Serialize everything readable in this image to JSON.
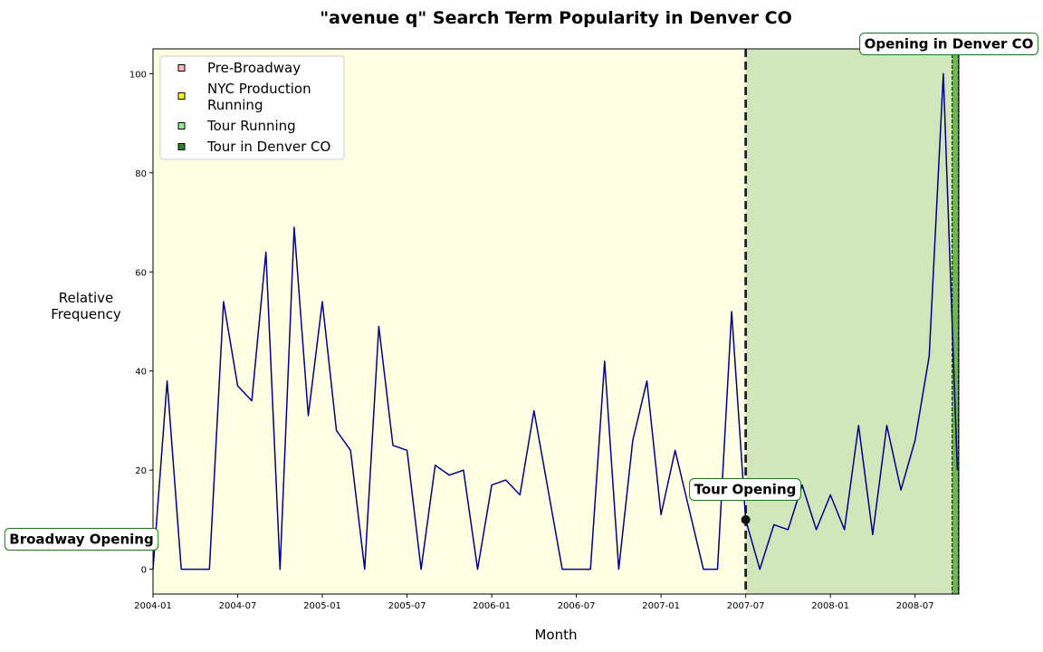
{
  "chart_data": {
    "type": "line",
    "title": "\"avenue q\" Search Term Popularity in Denver CO",
    "xlabel": "Month",
    "ylabel": "Relative\nFrequency",
    "ylim": [
      -5,
      105
    ],
    "y_ticks": [
      0,
      20,
      40,
      60,
      80,
      100
    ],
    "x_ticks": [
      "2004-01",
      "2004-07",
      "2005-01",
      "2005-07",
      "2006-01",
      "2006-07",
      "2007-01",
      "2007-07",
      "2008-01",
      "2008-07"
    ],
    "x_start": "2004-01",
    "x_end": "2008-10",
    "grid": false,
    "legend_position": "top-left",
    "series": [
      {
        "color": "#00008b",
        "x": [
          "2004-01",
          "2004-02",
          "2004-03",
          "2004-04",
          "2004-05",
          "2004-06",
          "2004-07",
          "2004-08",
          "2004-09",
          "2004-10",
          "2004-11",
          "2004-12",
          "2005-01",
          "2005-02",
          "2005-03",
          "2005-04",
          "2005-05",
          "2005-06",
          "2005-07",
          "2005-08",
          "2005-09",
          "2005-10",
          "2005-11",
          "2005-12",
          "2006-01",
          "2006-02",
          "2006-03",
          "2006-04",
          "2006-05",
          "2006-06",
          "2006-07",
          "2006-08",
          "2006-09",
          "2006-10",
          "2006-11",
          "2006-12",
          "2007-01",
          "2007-02",
          "2007-03",
          "2007-04",
          "2007-05",
          "2007-06",
          "2007-07",
          "2007-08",
          "2007-09",
          "2007-10",
          "2007-11",
          "2007-12",
          "2008-01",
          "2008-02",
          "2008-03",
          "2008-04",
          "2008-05",
          "2008-06",
          "2008-07",
          "2008-08",
          "2008-09",
          "2008-10"
        ],
        "values": [
          0,
          38,
          0,
          0,
          0,
          54,
          37,
          34,
          64,
          0,
          69,
          31,
          54,
          28,
          24,
          0,
          49,
          25,
          24,
          0,
          21,
          19,
          20,
          0,
          17,
          18,
          15,
          32,
          16,
          0,
          0,
          0,
          42,
          0,
          26,
          38,
          11,
          24,
          12,
          0,
          0,
          52,
          10,
          0,
          9,
          8,
          17,
          8,
          15,
          8,
          29,
          7,
          29,
          16,
          26,
          43,
          100,
          20
        ]
      }
    ],
    "regions": [
      {
        "label": "Pre-Broadway",
        "color": "#ffb6c1",
        "start": "2004-01",
        "end": "2004-01"
      },
      {
        "label": "NYC Production\nRunning",
        "color": "#ffff00",
        "start": "2004-01",
        "end": "2007-07"
      },
      {
        "label": "Tour Running",
        "color": "#90ee90",
        "start": "2007-07",
        "end": "2008-10"
      },
      {
        "label": "Tour in Denver CO",
        "color": "#228b22",
        "start": "2008-09-20",
        "end": "2008-10-03"
      }
    ],
    "annotations": [
      {
        "text": "Broadway Opening",
        "x": "2004-01",
        "y": 0
      },
      {
        "text": "Tour Opening",
        "x": "2007-07",
        "y": 10
      },
      {
        "text": "Opening in Denver CO",
        "x": "2008-09-20",
        "y": 100
      }
    ]
  }
}
